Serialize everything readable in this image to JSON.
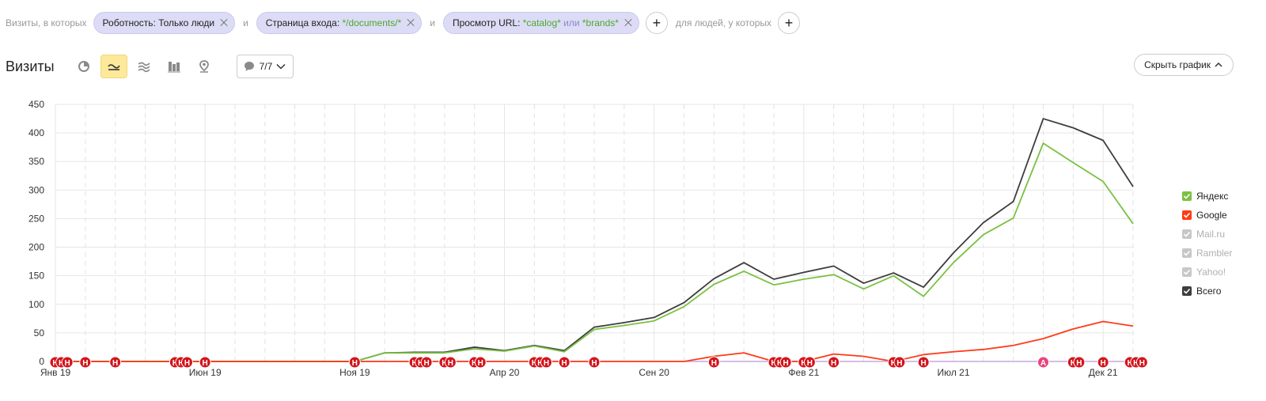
{
  "filters": {
    "prefix": "Визиты, в которых",
    "chips": [
      {
        "parts": [
          {
            "t": "Роботность: Только люди",
            "c": ""
          }
        ]
      },
      {
        "parts": [
          {
            "t": "Страница входа: ",
            "c": ""
          },
          {
            "t": "*/documents/*",
            "c": "g"
          }
        ]
      },
      {
        "parts": [
          {
            "t": "Просмотр URL: ",
            "c": ""
          },
          {
            "t": "*catalog*",
            "c": "g"
          },
          {
            "t": " или ",
            "c": "o"
          },
          {
            "t": "*brands*",
            "c": "g"
          }
        ]
      }
    ],
    "connector": "и",
    "suffix": "для людей, у которых",
    "plus": "+"
  },
  "toolbar": {
    "title": "Визиты",
    "counter": "7/7",
    "hide_chart": "Скрыть график",
    "icons": [
      "pie-chart-icon",
      "line-chart-icon",
      "stacked-area-icon",
      "bar-chart-icon",
      "map-pin-icon"
    ]
  },
  "legend": [
    {
      "name": "Яндекс",
      "color": "#7ac142",
      "on": true
    },
    {
      "name": "Google",
      "color": "#fe3b17",
      "on": true
    },
    {
      "name": "Mail.ru",
      "color": "#c7c7c7",
      "on": false
    },
    {
      "name": "Rambler",
      "color": "#c7c7c7",
      "on": false
    },
    {
      "name": "Yahoo!",
      "color": "#c7c7c7",
      "on": false
    },
    {
      "name": "Всего",
      "color": "#3d3d3d",
      "on": true
    }
  ],
  "chart_data": {
    "type": "line",
    "ylim": [
      0,
      450
    ],
    "yticks": [
      0,
      50,
      100,
      150,
      200,
      250,
      300,
      350,
      400,
      450
    ],
    "x_labels": [
      {
        "i": 0,
        "t": "Янв 19"
      },
      {
        "i": 5,
        "t": "Июн 19"
      },
      {
        "i": 10,
        "t": "Ноя 19"
      },
      {
        "i": 15,
        "t": "Апр 20"
      },
      {
        "i": 20,
        "t": "Сен 20"
      },
      {
        "i": 25,
        "t": "Фев 21"
      },
      {
        "i": 30,
        "t": "Июл 21"
      },
      {
        "i": 35,
        "t": "Дек 21"
      }
    ],
    "x_count": 37,
    "series": [
      {
        "name": "Всего",
        "color": "#3d3d3d",
        "values": [
          0,
          0,
          0,
          0,
          0,
          0,
          0,
          0,
          0,
          0,
          0,
          15,
          16,
          16,
          25,
          19,
          28,
          19,
          60,
          68,
          77,
          103,
          145,
          173,
          144,
          156,
          167,
          137,
          155,
          130,
          190,
          243,
          280,
          425,
          409,
          387,
          306
        ]
      },
      {
        "name": "Яндекс",
        "color": "#7ac142",
        "values": [
          0,
          0,
          0,
          0,
          0,
          0,
          0,
          0,
          0,
          0,
          0,
          15,
          15,
          15,
          22,
          18,
          27,
          17,
          56,
          63,
          71,
          96,
          135,
          158,
          134,
          144,
          152,
          127,
          150,
          114,
          173,
          222,
          251,
          382,
          348,
          315,
          241
        ]
      },
      {
        "name": "Google",
        "color": "#fe3b17",
        "values": [
          0,
          0,
          0,
          0,
          0,
          0,
          0,
          0,
          0,
          0,
          0,
          0,
          0,
          0,
          0,
          0,
          0,
          0,
          0,
          0,
          0,
          0,
          9,
          15,
          0,
          0,
          13,
          9,
          0,
          12,
          17,
          21,
          28,
          40,
          57,
          70,
          62
        ]
      }
    ],
    "markers": [
      {
        "i": 0,
        "t": "Н"
      },
      {
        "i": 0.2,
        "t": "Н"
      },
      {
        "i": 0.4,
        "t": "Н"
      },
      {
        "i": 1,
        "t": "Н"
      },
      {
        "i": 2,
        "t": "Н"
      },
      {
        "i": 4,
        "t": "Н"
      },
      {
        "i": 4.2,
        "t": "Н"
      },
      {
        "i": 4.4,
        "t": "Н"
      },
      {
        "i": 5,
        "t": "Н"
      },
      {
        "i": 10,
        "t": "Н"
      },
      {
        "i": 12,
        "t": "Н"
      },
      {
        "i": 12.2,
        "t": "Н"
      },
      {
        "i": 12.4,
        "t": "Н"
      },
      {
        "i": 13,
        "t": "Н"
      },
      {
        "i": 13.2,
        "t": "Н"
      },
      {
        "i": 14,
        "t": "Н"
      },
      {
        "i": 14.2,
        "t": "Н"
      },
      {
        "i": 16,
        "t": "Н"
      },
      {
        "i": 16.2,
        "t": "Н"
      },
      {
        "i": 16.4,
        "t": "Н"
      },
      {
        "i": 17,
        "t": "Н"
      },
      {
        "i": 18,
        "t": "Н"
      },
      {
        "i": 22,
        "t": "Н"
      },
      {
        "i": 24,
        "t": "Н"
      },
      {
        "i": 24.2,
        "t": "Н"
      },
      {
        "i": 24.4,
        "t": "Н"
      },
      {
        "i": 25,
        "t": "Н"
      },
      {
        "i": 25.2,
        "t": "Н"
      },
      {
        "i": 26,
        "t": "Н"
      },
      {
        "i": 28,
        "t": "Н"
      },
      {
        "i": 28.2,
        "t": "Н"
      },
      {
        "i": 29,
        "t": "Н"
      },
      {
        "i": 33,
        "t": "А"
      },
      {
        "i": 34,
        "t": "Н"
      },
      {
        "i": 34.2,
        "t": "Н"
      },
      {
        "i": 35,
        "t": "Н"
      },
      {
        "i": 35.9,
        "t": "Н"
      },
      {
        "i": 36.1,
        "t": "Н"
      },
      {
        "i": 36.3,
        "t": "Н"
      }
    ]
  }
}
